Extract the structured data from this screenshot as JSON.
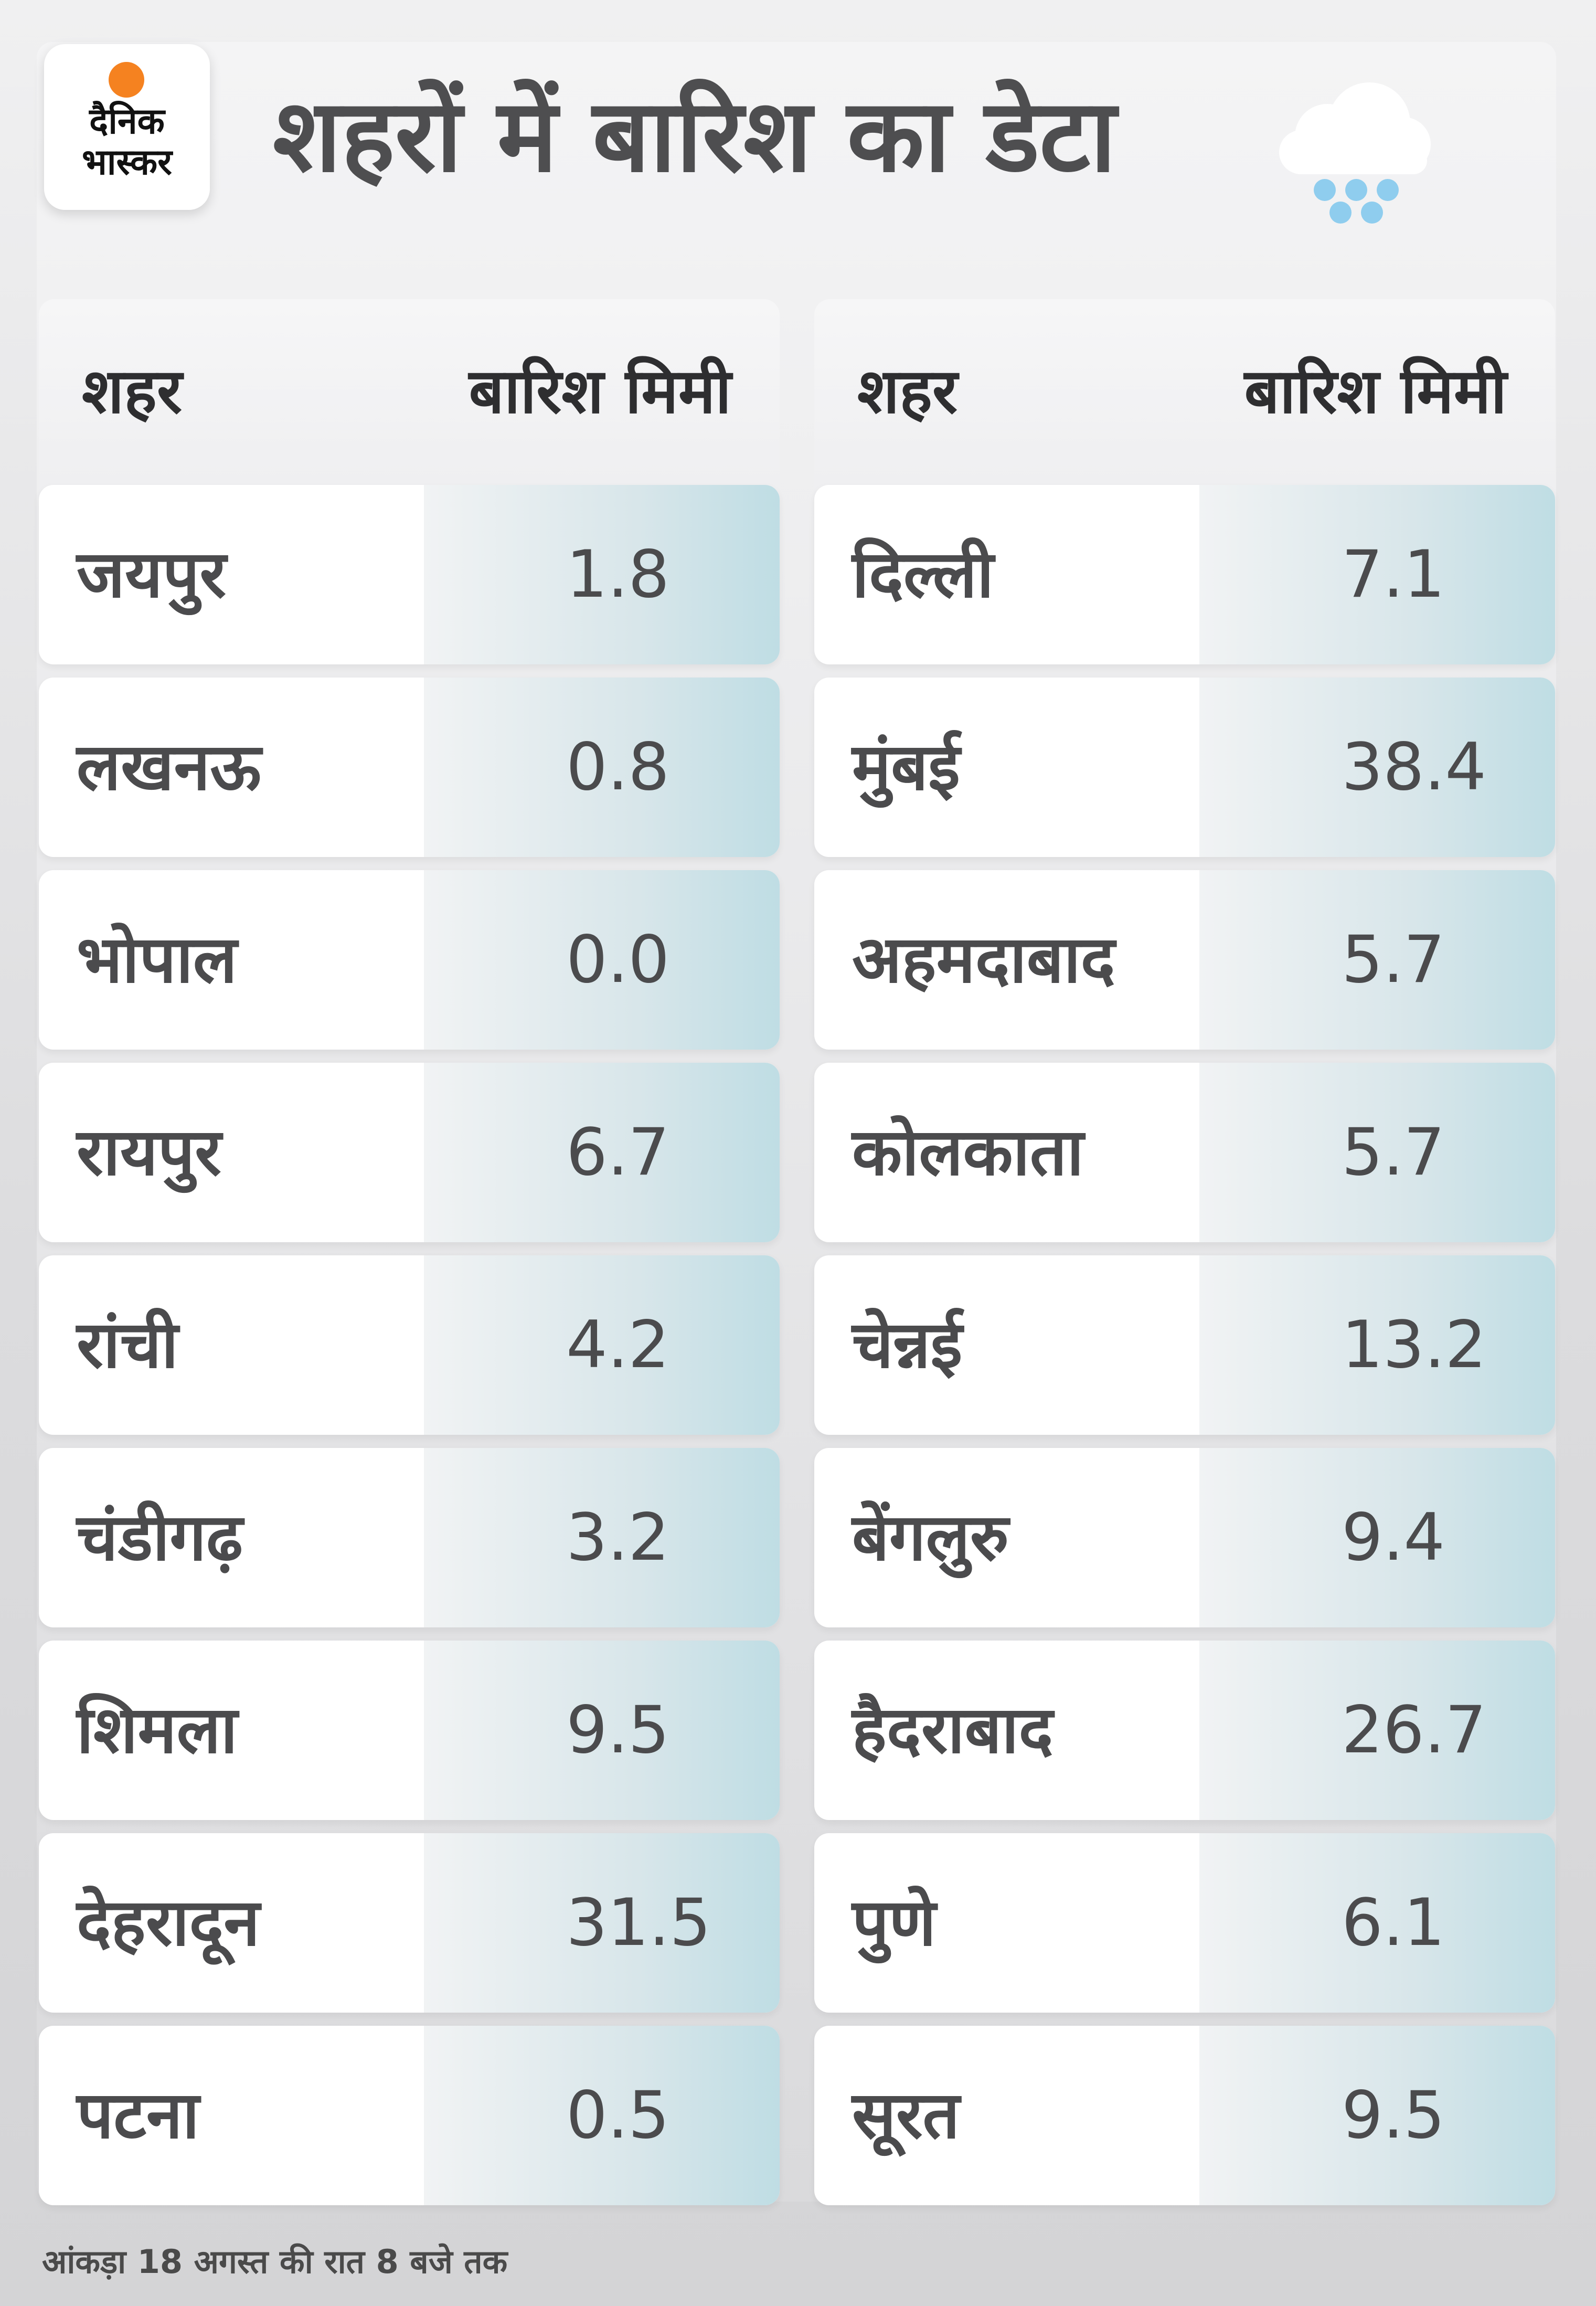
{
  "brand": {
    "logo_line1": "दैनिक",
    "logo_line2": "भास्कर",
    "accent": "#f58220"
  },
  "title": "शहरों में बारिश का डेटा",
  "columns": {
    "city": "शहर",
    "rain": "बारिश मिमी"
  },
  "left_rows": [
    {
      "city": "जयपुर",
      "rain": "1.8"
    },
    {
      "city": "लखनऊ",
      "rain": "0.8"
    },
    {
      "city": "भोपाल",
      "rain": "0.0"
    },
    {
      "city": "रायपुर",
      "rain": "6.7"
    },
    {
      "city": "रांची",
      "rain": "4.2"
    },
    {
      "city": "चंडीगढ़",
      "rain": "3.2"
    },
    {
      "city": "शिमला",
      "rain": "9.5"
    },
    {
      "city": "देहरादून",
      "rain": "31.5"
    },
    {
      "city": "पटना",
      "rain": "0.5"
    }
  ],
  "right_rows": [
    {
      "city": "दिल्ली",
      "rain": "7.1"
    },
    {
      "city": "मुंबई",
      "rain": "38.4"
    },
    {
      "city": "अहमदाबाद",
      "rain": "5.7"
    },
    {
      "city": "कोलकाता",
      "rain": "5.7"
    },
    {
      "city": "चेन्नई",
      "rain": "13.2"
    },
    {
      "city": "बेंगलुरु",
      "rain": "9.4"
    },
    {
      "city": "हैदराबाद",
      "rain": "26.7"
    },
    {
      "city": "पुणे",
      "rain": "6.1"
    },
    {
      "city": "सूरत",
      "rain": "9.5"
    }
  ],
  "footer": "आंकड़ा 18 अगस्त की रात 8 बजे तक",
  "icon": "rain-cloud-icon"
}
